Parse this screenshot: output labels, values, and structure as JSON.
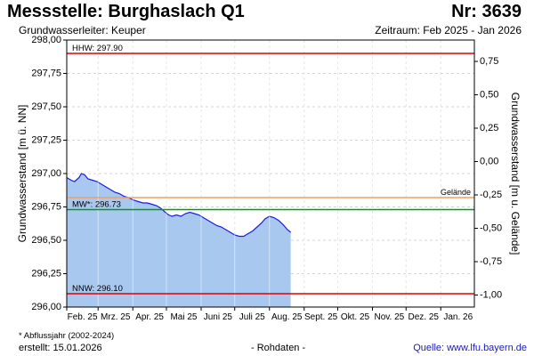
{
  "header": {
    "title": "Messstelle: Burghaslach Q1",
    "number": "Nr: 3639",
    "subtitle": "Grundwasserleiter: Keuper",
    "period": "Zeitraum: Feb 2025 - Jan 2026"
  },
  "footer": {
    "footnote": "* Abflussjahr (2002-2024)",
    "created": "erstellt:  15.01.2026",
    "raw_data": "- Rohdaten -",
    "source": "Quelle: www.lfu.bayern.de"
  },
  "chart_data": {
    "type": "area",
    "ylabel": "Grundwasserstand [m ü. NN]",
    "y2label": "Grundwasserstand [m u. Gelände]",
    "ylim": [
      296.0,
      298.0
    ],
    "y2lim": [
      -1.09,
      0.91
    ],
    "yticks": [
      "296,00",
      "296,25",
      "296,50",
      "296,75",
      "297,00",
      "297,25",
      "297,50",
      "297,75",
      "298,00"
    ],
    "y2ticks": [
      "-1,00",
      "-0,75",
      "-0,50",
      "-0,25",
      "0,00",
      "0,25",
      "0,50",
      "0,75"
    ],
    "xlim": [
      "2025-02-01",
      "2026-01-31"
    ],
    "xticks": [
      "Feb. 25",
      "Mrz. 25",
      "Apr. 25",
      "Mai 25",
      "Juni 25",
      "Juli 25",
      "Aug. 25",
      "Sept. 25",
      "Okt. 25",
      "Nov. 25",
      "Dez. 25",
      "Jan. 26"
    ],
    "grid": true,
    "fill_color": "#a8c8f0",
    "line_color": "#1a1ae6",
    "reference_lines": [
      {
        "label": "HHW: 297.90",
        "value": 297.9,
        "color": "#e00000"
      },
      {
        "label": "Gelände",
        "value": 296.82,
        "color": "#f0a060"
      },
      {
        "label": "MW*: 296.73",
        "value": 296.73,
        "color": "#00a000"
      },
      {
        "label": "NNW: 296.10",
        "value": 296.1,
        "color": "#e00000"
      }
    ],
    "series": [
      {
        "x": [
          "2025-02-01",
          "2025-02-05",
          "2025-02-08",
          "2025-02-12",
          "2025-02-14",
          "2025-02-17",
          "2025-02-20",
          "2025-02-24",
          "2025-02-28",
          "2025-03-04",
          "2025-03-08",
          "2025-03-12",
          "2025-03-16",
          "2025-03-20",
          "2025-03-24",
          "2025-03-28",
          "2025-04-02",
          "2025-04-06",
          "2025-04-10",
          "2025-04-14",
          "2025-04-18",
          "2025-04-22",
          "2025-04-26",
          "2025-04-30",
          "2025-05-03",
          "2025-05-06",
          "2025-05-10",
          "2025-05-14",
          "2025-05-18",
          "2025-05-22",
          "2025-05-26",
          "2025-05-30",
          "2025-06-03",
          "2025-06-07",
          "2025-06-11",
          "2025-06-15",
          "2025-06-19",
          "2025-06-23",
          "2025-06-27",
          "2025-07-01",
          "2025-07-05",
          "2025-07-09",
          "2025-07-13",
          "2025-07-17",
          "2025-07-21",
          "2025-07-25",
          "2025-07-28",
          "2025-08-01",
          "2025-08-05",
          "2025-08-09",
          "2025-08-13",
          "2025-08-17",
          "2025-08-20"
        ],
        "values": [
          296.97,
          296.95,
          296.94,
          296.97,
          297.0,
          296.99,
          296.96,
          296.95,
          296.94,
          296.92,
          296.9,
          296.88,
          296.86,
          296.85,
          296.83,
          296.82,
          296.8,
          296.79,
          296.78,
          296.78,
          296.77,
          296.76,
          296.74,
          296.71,
          296.69,
          296.68,
          296.69,
          296.68,
          296.7,
          296.71,
          296.7,
          296.69,
          296.67,
          296.65,
          296.63,
          296.61,
          296.6,
          296.58,
          296.56,
          296.54,
          296.53,
          296.53,
          296.55,
          296.57,
          296.6,
          296.63,
          296.66,
          296.68,
          296.67,
          296.65,
          296.62,
          296.58,
          296.56
        ]
      }
    ]
  }
}
